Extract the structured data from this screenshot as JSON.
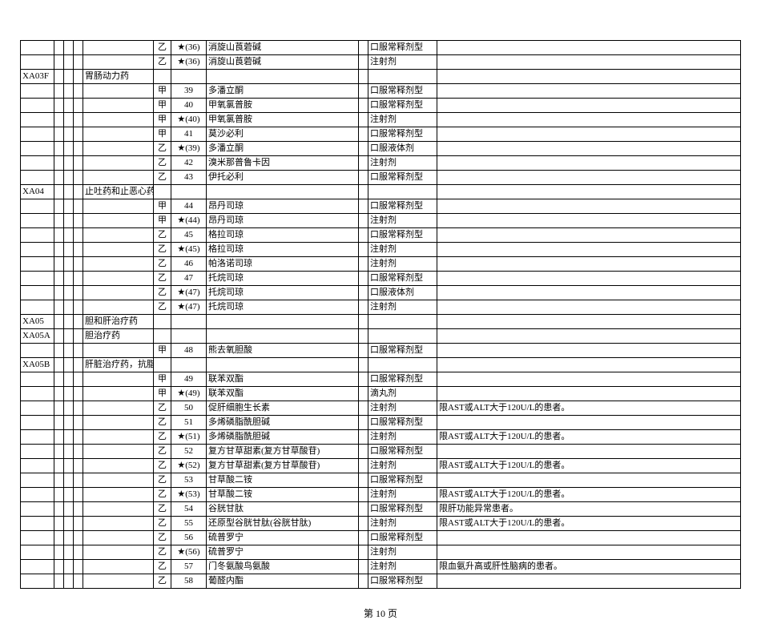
{
  "page_label": "第 10 页",
  "columns": [
    "code",
    "b1",
    "b2",
    "b3",
    "category",
    "tier",
    "num",
    "drug",
    "b4",
    "form",
    "note"
  ],
  "rows": [
    [
      "",
      "",
      "",
      "",
      "",
      "乙",
      "★(36)",
      "消旋山莨菪碱",
      "",
      "口服常释剂型",
      ""
    ],
    [
      "",
      "",
      "",
      "",
      "",
      "乙",
      "★(36)",
      "消旋山莨菪碱",
      "",
      "注射剂",
      ""
    ],
    [
      "XA03F",
      "",
      "",
      "",
      "胃肠动力药",
      "",
      "",
      "",
      "",
      "",
      ""
    ],
    [
      "",
      "",
      "",
      "",
      "",
      "甲",
      "39",
      "多潘立酮",
      "",
      "口服常释剂型",
      ""
    ],
    [
      "",
      "",
      "",
      "",
      "",
      "甲",
      "40",
      "甲氧氯普胺",
      "",
      "口服常释剂型",
      ""
    ],
    [
      "",
      "",
      "",
      "",
      "",
      "甲",
      "★(40)",
      "甲氧氯普胺",
      "",
      "注射剂",
      ""
    ],
    [
      "",
      "",
      "",
      "",
      "",
      "甲",
      "41",
      "莫沙必利",
      "",
      "口服常释剂型",
      ""
    ],
    [
      "",
      "",
      "",
      "",
      "",
      "乙",
      "★(39)",
      "多潘立酮",
      "",
      "口服液体剂",
      ""
    ],
    [
      "",
      "",
      "",
      "",
      "",
      "乙",
      "42",
      "溴米那普鲁卡因",
      "",
      "注射剂",
      ""
    ],
    [
      "",
      "",
      "",
      "",
      "",
      "乙",
      "43",
      "伊托必利",
      "",
      "口服常释剂型",
      ""
    ],
    [
      "XA04",
      "",
      "",
      "",
      "止吐药和止恶心药",
      "",
      "",
      "",
      "",
      "",
      ""
    ],
    [
      "",
      "",
      "",
      "",
      "",
      "甲",
      "44",
      "昂丹司琼",
      "",
      "口服常释剂型",
      ""
    ],
    [
      "",
      "",
      "",
      "",
      "",
      "甲",
      "★(44)",
      "昂丹司琼",
      "",
      "注射剂",
      ""
    ],
    [
      "",
      "",
      "",
      "",
      "",
      "乙",
      "45",
      "格拉司琼",
      "",
      "口服常释剂型",
      ""
    ],
    [
      "",
      "",
      "",
      "",
      "",
      "乙",
      "★(45)",
      "格拉司琼",
      "",
      "注射剂",
      ""
    ],
    [
      "",
      "",
      "",
      "",
      "",
      "乙",
      "46",
      "帕洛诺司琼",
      "",
      "注射剂",
      ""
    ],
    [
      "",
      "",
      "",
      "",
      "",
      "乙",
      "47",
      "托烷司琼",
      "",
      "口服常释剂型",
      ""
    ],
    [
      "",
      "",
      "",
      "",
      "",
      "乙",
      "★(47)",
      "托烷司琼",
      "",
      "口服液体剂",
      ""
    ],
    [
      "",
      "",
      "",
      "",
      "",
      "乙",
      "★(47)",
      "托烷司琼",
      "",
      "注射剂",
      ""
    ],
    [
      "XA05",
      "",
      "",
      "",
      "胆和肝治疗药",
      "",
      "",
      "",
      "",
      "",
      ""
    ],
    [
      "XA05A",
      "",
      "",
      "",
      "胆治疗药",
      "",
      "",
      "",
      "",
      "",
      ""
    ],
    [
      "",
      "",
      "",
      "",
      "",
      "甲",
      "48",
      "熊去氧胆酸",
      "",
      "口服常释剂型",
      ""
    ],
    [
      "XA05B",
      "",
      "",
      "",
      "肝脏治疗药，抗脂肪肝药",
      "",
      "",
      "",
      "",
      "",
      ""
    ],
    [
      "",
      "",
      "",
      "",
      "",
      "甲",
      "49",
      "联苯双酯",
      "",
      "口服常释剂型",
      ""
    ],
    [
      "",
      "",
      "",
      "",
      "",
      "甲",
      "★(49)",
      "联苯双酯",
      "",
      "滴丸剂",
      ""
    ],
    [
      "",
      "",
      "",
      "",
      "",
      "乙",
      "50",
      "促肝细胞生长素",
      "",
      "注射剂",
      "限AST或ALT大于120U/L的患者。"
    ],
    [
      "",
      "",
      "",
      "",
      "",
      "乙",
      "51",
      "多烯磷脂酰胆碱",
      "",
      "口服常释剂型",
      ""
    ],
    [
      "",
      "",
      "",
      "",
      "",
      "乙",
      "★(51)",
      "多烯磷脂酰胆碱",
      "",
      "注射剂",
      "限AST或ALT大于120U/L的患者。"
    ],
    [
      "",
      "",
      "",
      "",
      "",
      "乙",
      "52",
      "复方甘草甜素(复方甘草酸苷)",
      "",
      "口服常释剂型",
      ""
    ],
    [
      "",
      "",
      "",
      "",
      "",
      "乙",
      "★(52)",
      "复方甘草甜素(复方甘草酸苷)",
      "",
      "注射剂",
      "限AST或ALT大于120U/L的患者。"
    ],
    [
      "",
      "",
      "",
      "",
      "",
      "乙",
      "53",
      "甘草酸二铵",
      "",
      "口服常释剂型",
      ""
    ],
    [
      "",
      "",
      "",
      "",
      "",
      "乙",
      "★(53)",
      "甘草酸二铵",
      "",
      "注射剂",
      "限AST或ALT大于120U/L的患者。"
    ],
    [
      "",
      "",
      "",
      "",
      "",
      "乙",
      "54",
      "谷胱甘肽",
      "",
      "口服常释剂型",
      "限肝功能异常患者。"
    ],
    [
      "",
      "",
      "",
      "",
      "",
      "乙",
      "55",
      "还原型谷胱甘肽(谷胱甘肽)",
      "",
      "注射剂",
      "限AST或ALT大于120U/L的患者。"
    ],
    [
      "",
      "",
      "",
      "",
      "",
      "乙",
      "56",
      "硫普罗宁",
      "",
      "口服常释剂型",
      ""
    ],
    [
      "",
      "",
      "",
      "",
      "",
      "乙",
      "★(56)",
      "硫普罗宁",
      "",
      "注射剂",
      ""
    ],
    [
      "",
      "",
      "",
      "",
      "",
      "乙",
      "57",
      "门冬氨酸鸟氨酸",
      "",
      "注射剂",
      "限血氨升高或肝性脑病的患者。"
    ],
    [
      "",
      "",
      "",
      "",
      "",
      "乙",
      "58",
      "葡醛内酯",
      "",
      "口服常释剂型",
      ""
    ]
  ]
}
